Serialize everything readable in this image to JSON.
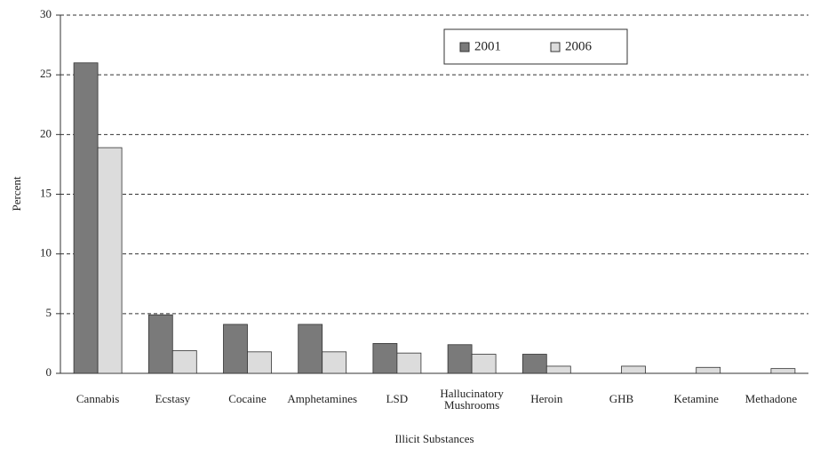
{
  "chart_data": {
    "type": "bar",
    "x_label": "Illicit Substances",
    "y_label": "Percent",
    "categories": [
      "Cannabis",
      "Ecstasy",
      "Cocaine",
      "Amphetamines",
      "LSD",
      "Hallucinatory Mushrooms",
      "Heroin",
      "GHB",
      "Ketamine",
      "Methadone"
    ],
    "series": [
      {
        "name": "2001",
        "color": "#7a7a7a",
        "values": [
          26,
          4.9,
          4.1,
          4.1,
          2.5,
          2.4,
          1.6,
          null,
          null,
          null
        ]
      },
      {
        "name": "2006",
        "color": "#dcdcdc",
        "values": [
          18.9,
          1.9,
          1.8,
          1.8,
          1.7,
          1.6,
          0.6,
          0.6,
          0.5,
          0.4
        ]
      }
    ],
    "ylim": [
      0,
      30
    ],
    "yticks": [
      0,
      5,
      10,
      15,
      20,
      25,
      30
    ],
    "grid": true,
    "legend": "top"
  }
}
